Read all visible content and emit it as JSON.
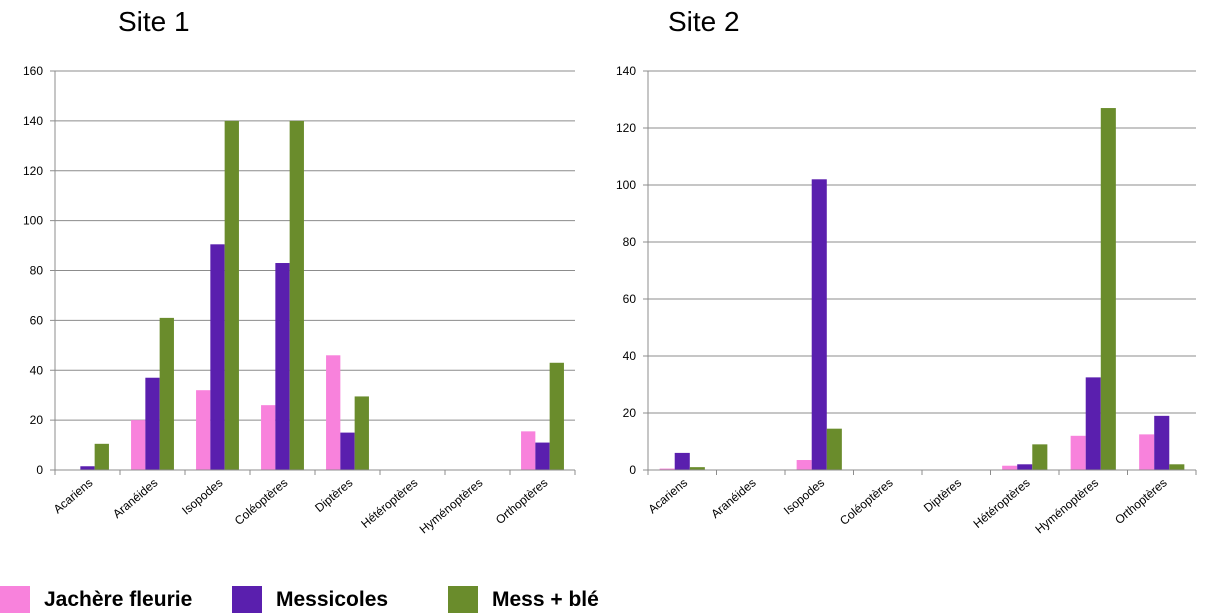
{
  "charts": [
    {
      "title": "Site 1",
      "chart_data": {
        "type": "bar",
        "categories": [
          "Acariens",
          "Aranéides",
          "Isopodes",
          "Coléoptères",
          "Diptères",
          "Hétéroptères",
          "Hyménoptères",
          "Orthoptères"
        ],
        "series": [
          {
            "name": "Jachère fleurie",
            "values": [
              0,
              20,
              32,
              26,
              46,
              0,
              0,
              15.5
            ]
          },
          {
            "name": "Messicoles",
            "values": [
              1.5,
              37,
              90.5,
              83,
              15,
              0,
              0,
              11
            ]
          },
          {
            "name": "Mess + blé",
            "values": [
              10.5,
              61,
              140,
              140,
              29.5,
              0,
              0,
              43
            ]
          }
        ],
        "ylim": [
          0,
          160
        ],
        "yticks": [
          0,
          20,
          40,
          60,
          80,
          100,
          120,
          140,
          160
        ],
        "grid": true
      }
    },
    {
      "title": "Site 2",
      "chart_data": {
        "type": "bar",
        "categories": [
          "Acariens",
          "Aranéides",
          "Isopodes",
          "Coléoptères",
          "Diptères",
          "Hétéroptères",
          "Hyménoptères",
          "Orthoptères"
        ],
        "series": [
          {
            "name": "Jachère fleurie",
            "values": [
              0.5,
              0,
              3.5,
              0,
              0,
              1.5,
              12,
              12.5
            ]
          },
          {
            "name": "Messicoles",
            "values": [
              6,
              0,
              102,
              0,
              0,
              2,
              32.5,
              19
            ]
          },
          {
            "name": "Mess + blé",
            "values": [
              1,
              0,
              14.5,
              0,
              0,
              9,
              127,
              2
            ]
          }
        ],
        "ylim": [
          0,
          140
        ],
        "yticks": [
          0,
          20,
          40,
          60,
          80,
          100,
          120,
          140
        ],
        "grid": true
      }
    }
  ],
  "legend": [
    {
      "label": "Jachère fleurie",
      "color": "#f882dc"
    },
    {
      "label": "Messicoles",
      "color": "#5a1fae"
    },
    {
      "label": "Mess + blé",
      "color": "#6a8c2c"
    }
  ]
}
